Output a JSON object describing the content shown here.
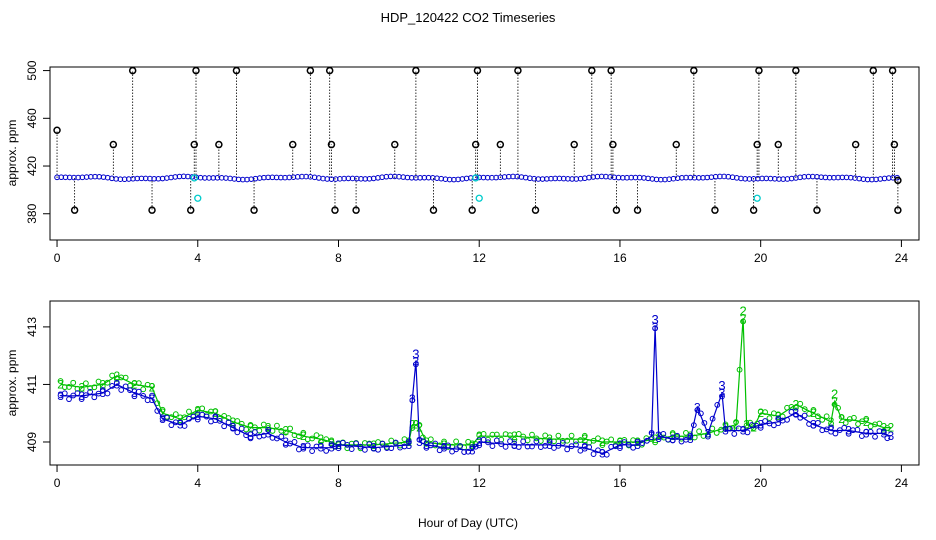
{
  "figure": {
    "title": "HDP_120422  CO2 Timeseries",
    "xlabel": "Hour of Day (UTC)"
  },
  "colors": {
    "raw_points": "#000000",
    "series_1": "#00cccc",
    "series_2": "#00c000",
    "series_3": "#0000cc"
  },
  "chart_data": [
    {
      "type": "scatter",
      "panel": "top",
      "ylabel": "approx. ppm",
      "xlim": [
        -0.2,
        24.5
      ],
      "ylim": [
        358,
        503
      ],
      "x_ticks": [
        0,
        4,
        8,
        12,
        16,
        20,
        24
      ],
      "x_tick_labels": [
        "0",
        "4",
        "8",
        "12",
        "16",
        "20",
        "24"
      ],
      "y_ticks": [
        380,
        420,
        460,
        500
      ],
      "y_tick_labels": [
        "380",
        "420",
        "460",
        "500"
      ],
      "baseline_ppm": 410,
      "baseline_note": "dense blue/cyan series near 410 ppm across 0-24 h",
      "spikes": [
        {
          "x": 0.0,
          "y": 450
        },
        {
          "x": 0.5,
          "y": 383
        },
        {
          "x": 1.6,
          "y": 438
        },
        {
          "x": 2.15,
          "y": 500
        },
        {
          "x": 2.7,
          "y": 383
        },
        {
          "x": 3.8,
          "y": 383
        },
        {
          "x": 3.9,
          "y": 438
        },
        {
          "x": 3.95,
          "y": 500
        },
        {
          "x": 4.6,
          "y": 438
        },
        {
          "x": 5.1,
          "y": 500
        },
        {
          "x": 5.6,
          "y": 383
        },
        {
          "x": 6.7,
          "y": 438
        },
        {
          "x": 7.2,
          "y": 500
        },
        {
          "x": 7.75,
          "y": 500
        },
        {
          "x": 7.8,
          "y": 438
        },
        {
          "x": 7.9,
          "y": 383
        },
        {
          "x": 8.5,
          "y": 383
        },
        {
          "x": 9.6,
          "y": 438
        },
        {
          "x": 10.2,
          "y": 500
        },
        {
          "x": 10.7,
          "y": 383
        },
        {
          "x": 11.8,
          "y": 383
        },
        {
          "x": 11.9,
          "y": 438
        },
        {
          "x": 11.95,
          "y": 500
        },
        {
          "x": 12.6,
          "y": 438
        },
        {
          "x": 13.1,
          "y": 500
        },
        {
          "x": 13.6,
          "y": 383
        },
        {
          "x": 14.7,
          "y": 438
        },
        {
          "x": 15.2,
          "y": 500
        },
        {
          "x": 15.75,
          "y": 500
        },
        {
          "x": 15.8,
          "y": 438
        },
        {
          "x": 15.9,
          "y": 383
        },
        {
          "x": 16.5,
          "y": 383
        },
        {
          "x": 17.6,
          "y": 438
        },
        {
          "x": 18.1,
          "y": 500
        },
        {
          "x": 18.7,
          "y": 383
        },
        {
          "x": 19.8,
          "y": 383
        },
        {
          "x": 19.9,
          "y": 438
        },
        {
          "x": 19.95,
          "y": 500
        },
        {
          "x": 20.5,
          "y": 438
        },
        {
          "x": 21.0,
          "y": 500
        },
        {
          "x": 21.6,
          "y": 383
        },
        {
          "x": 22.7,
          "y": 438
        },
        {
          "x": 23.2,
          "y": 500
        },
        {
          "x": 23.75,
          "y": 500
        },
        {
          "x": 23.8,
          "y": 438
        },
        {
          "x": 23.9,
          "y": 383
        },
        {
          "x": 23.9,
          "y": 408
        }
      ],
      "cyan_points": [
        {
          "x": 4.0,
          "y": 393
        },
        {
          "x": 12.0,
          "y": 393
        },
        {
          "x": 19.9,
          "y": 393
        },
        {
          "x": 3.9,
          "y": 410
        },
        {
          "x": 11.9,
          "y": 410
        }
      ]
    },
    {
      "type": "line",
      "panel": "bottom",
      "ylabel": "approx. ppm",
      "xlim": [
        -0.2,
        24.5
      ],
      "ylim": [
        408.2,
        413.9
      ],
      "x_ticks": [
        0,
        4,
        8,
        12,
        16,
        20,
        24
      ],
      "x_tick_labels": [
        "0",
        "4",
        "8",
        "12",
        "16",
        "20",
        "24"
      ],
      "y_ticks": [
        409,
        411,
        413
      ],
      "y_tick_labels": [
        "409",
        "411",
        "413"
      ],
      "series": [
        {
          "name": "2",
          "marker": "2",
          "x": [
            0.1,
            0.7,
            1.3,
            1.7,
            2.2,
            2.7,
            3.0,
            3.5,
            4.0,
            4.5,
            5.0,
            5.5,
            6.0,
            6.5,
            7.0,
            7.5,
            7.8,
            8.0,
            9.0,
            10.0,
            10.1,
            10.2,
            10.3,
            10.5,
            11.0,
            11.8,
            12.0,
            13.0,
            14.0,
            15.0,
            15.5,
            16.0,
            16.5,
            17.0,
            17.5,
            18.0,
            18.5,
            19.0,
            19.3,
            19.5,
            19.6,
            19.8,
            20.0,
            20.5,
            21.0,
            21.5,
            22.0,
            22.1,
            22.3,
            23.0,
            23.5,
            23.7
          ],
          "y": [
            411.0,
            410.9,
            411.0,
            411.3,
            411.0,
            410.9,
            410.0,
            409.8,
            410.1,
            410.0,
            409.7,
            409.5,
            409.5,
            409.4,
            409.2,
            409.1,
            409.0,
            408.9,
            408.9,
            409.0,
            409.6,
            409.6,
            409.5,
            409.0,
            408.9,
            408.9,
            409.2,
            409.2,
            409.1,
            409.1,
            409.0,
            409.0,
            409.0,
            409.1,
            409.2,
            409.2,
            409.3,
            409.5,
            409.6,
            413.3,
            409.6,
            409.5,
            410.0,
            409.9,
            410.3,
            410.0,
            409.7,
            410.4,
            409.8,
            409.7,
            409.5,
            409.5
          ]
        },
        {
          "name": "3",
          "marker": "3",
          "x": [
            0.1,
            0.7,
            1.3,
            1.7,
            2.2,
            2.7,
            3.0,
            3.5,
            4.0,
            4.5,
            5.0,
            5.5,
            6.0,
            6.5,
            7.0,
            7.5,
            7.8,
            8.0,
            9.0,
            10.0,
            10.1,
            10.2,
            10.3,
            10.5,
            11.0,
            11.8,
            12.0,
            13.0,
            14.0,
            15.0,
            15.5,
            16.0,
            16.5,
            16.9,
            17.0,
            17.1,
            17.5,
            18.0,
            18.2,
            18.5,
            18.9,
            19.0,
            19.5,
            20.0,
            20.5,
            21.0,
            21.5,
            22.0,
            22.5,
            23.0,
            23.5,
            23.7
          ],
          "y": [
            410.6,
            410.6,
            410.7,
            411.0,
            410.7,
            410.5,
            409.8,
            409.6,
            409.9,
            409.8,
            409.5,
            409.2,
            409.3,
            409.0,
            408.8,
            408.8,
            408.8,
            408.9,
            408.8,
            408.9,
            410.5,
            411.8,
            409.0,
            408.9,
            408.8,
            408.7,
            409.0,
            408.9,
            408.9,
            408.8,
            408.6,
            408.9,
            408.9,
            409.2,
            413.0,
            409.2,
            409.1,
            409.1,
            410.2,
            409.3,
            410.7,
            409.4,
            409.4,
            409.6,
            409.7,
            410.0,
            409.6,
            409.4,
            409.4,
            409.3,
            409.3,
            409.2
          ]
        }
      ],
      "peak_labels": [
        {
          "text": "3",
          "x": 10.2,
          "y": 411.8
        },
        {
          "text": "3",
          "x": 17.0,
          "y": 413.0
        },
        {
          "text": "3",
          "x": 18.9,
          "y": 410.7
        },
        {
          "text": "2",
          "x": 19.5,
          "y": 413.3
        },
        {
          "text": "2",
          "x": 22.1,
          "y": 410.4
        }
      ]
    }
  ]
}
